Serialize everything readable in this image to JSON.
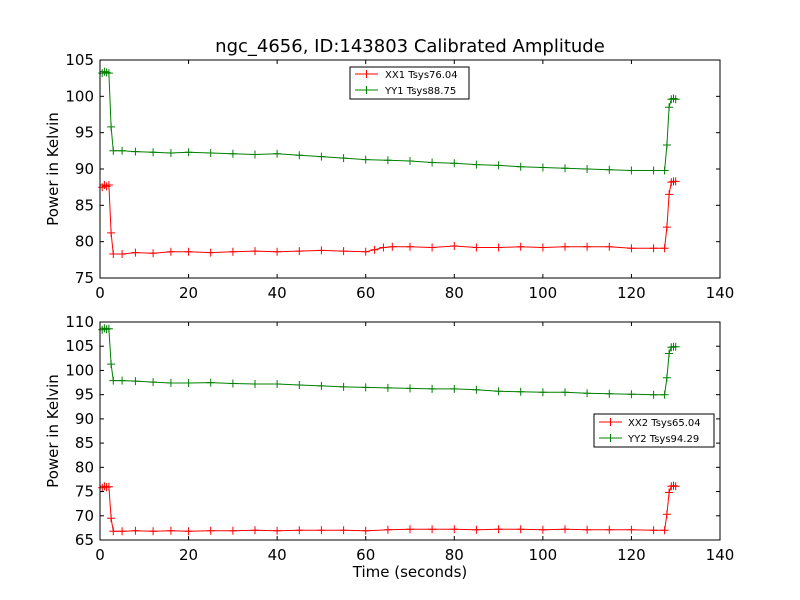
{
  "chart_data": [
    {
      "type": "line",
      "title": "ngc_4656, ID:143803 Calibrated Amplitude",
      "xlabel": "",
      "ylabel": "Power in Kelvin",
      "xlim": [
        0,
        140
      ],
      "ylim": [
        75,
        105
      ],
      "xticks": [
        0,
        20,
        40,
        60,
        80,
        100,
        120,
        140
      ],
      "yticks": [
        75,
        80,
        85,
        90,
        95,
        100,
        105
      ],
      "grid": false,
      "legend": "top-center",
      "series": [
        {
          "name": "XX1 Tsys76.04",
          "color": "#ff0000",
          "x": [
            0.5,
            1,
            1.5,
            2,
            2.5,
            3,
            5,
            8,
            12,
            16,
            20,
            25,
            30,
            35,
            40,
            45,
            50,
            55,
            60,
            62,
            64,
            66,
            70,
            75,
            80,
            85,
            90,
            95,
            100,
            105,
            110,
            115,
            120,
            125,
            127.5,
            128,
            128.5,
            129,
            129.5,
            130
          ],
          "y": [
            87.5,
            87.8,
            87.6,
            87.8,
            81.2,
            78.3,
            78.3,
            78.5,
            78.4,
            78.6,
            78.6,
            78.5,
            78.6,
            78.7,
            78.6,
            78.7,
            78.8,
            78.7,
            78.6,
            78.9,
            79.2,
            79.3,
            79.3,
            79.2,
            79.4,
            79.2,
            79.2,
            79.3,
            79.2,
            79.3,
            79.3,
            79.3,
            79.1,
            79.1,
            79.1,
            82.0,
            86.5,
            88.2,
            88.3,
            88.3
          ]
        },
        {
          "name": "YY1 Tsys88.75",
          "color": "#008000",
          "x": [
            0.5,
            1,
            1.5,
            2,
            2.5,
            3,
            5,
            8,
            12,
            16,
            20,
            25,
            30,
            35,
            40,
            45,
            50,
            55,
            60,
            65,
            70,
            75,
            80,
            85,
            90,
            95,
            100,
            105,
            110,
            115,
            120,
            125,
            127.5,
            128,
            128.5,
            129,
            129.5,
            130
          ],
          "y": [
            103.2,
            103.4,
            103.3,
            103.2,
            95.8,
            92.5,
            92.5,
            92.4,
            92.3,
            92.2,
            92.3,
            92.2,
            92.1,
            92.0,
            92.1,
            91.9,
            91.7,
            91.5,
            91.3,
            91.2,
            91.1,
            90.9,
            90.8,
            90.6,
            90.5,
            90.3,
            90.2,
            90.1,
            90.0,
            89.9,
            89.8,
            89.8,
            89.8,
            93.3,
            98.5,
            99.6,
            99.7,
            99.6
          ]
        }
      ]
    },
    {
      "type": "line",
      "title": "",
      "xlabel": "Time (seconds)",
      "ylabel": "Power in Kelvin",
      "xlim": [
        0,
        140
      ],
      "ylim": [
        65,
        110
      ],
      "xticks": [
        0,
        20,
        40,
        60,
        80,
        100,
        120,
        140
      ],
      "yticks": [
        65,
        70,
        75,
        80,
        85,
        90,
        95,
        100,
        105,
        110
      ],
      "grid": false,
      "legend": "right",
      "series": [
        {
          "name": "XX2 Tsys65.04",
          "color": "#ff0000",
          "x": [
            0.5,
            1,
            1.5,
            2,
            2.5,
            3,
            5,
            8,
            12,
            16,
            20,
            25,
            30,
            35,
            40,
            45,
            50,
            55,
            60,
            65,
            70,
            75,
            80,
            85,
            90,
            95,
            100,
            105,
            110,
            115,
            120,
            125,
            127.5,
            128,
            128.5,
            129,
            129.5,
            130
          ],
          "y": [
            75.8,
            76.1,
            75.9,
            76.0,
            69.5,
            66.8,
            66.8,
            66.9,
            66.8,
            66.9,
            66.8,
            66.9,
            66.9,
            67.0,
            66.9,
            67.0,
            67.0,
            67.0,
            66.9,
            67.1,
            67.2,
            67.2,
            67.2,
            67.1,
            67.2,
            67.2,
            67.1,
            67.2,
            67.1,
            67.1,
            67.1,
            67.0,
            67.0,
            70.3,
            74.8,
            76.1,
            76.2,
            76.1
          ]
        },
        {
          "name": "YY2 Tsys94.29",
          "color": "#008000",
          "x": [
            0.5,
            1,
            1.5,
            2,
            2.5,
            3,
            5,
            8,
            12,
            16,
            20,
            25,
            30,
            35,
            40,
            45,
            50,
            55,
            60,
            65,
            70,
            75,
            80,
            85,
            90,
            95,
            100,
            105,
            110,
            115,
            120,
            125,
            127.5,
            128,
            128.5,
            129,
            129.5,
            130
          ],
          "y": [
            108.4,
            108.7,
            108.5,
            108.6,
            101.3,
            97.9,
            97.9,
            97.8,
            97.6,
            97.4,
            97.4,
            97.5,
            97.3,
            97.2,
            97.2,
            97.0,
            96.8,
            96.6,
            96.5,
            96.4,
            96.3,
            96.2,
            96.2,
            96.0,
            95.7,
            95.6,
            95.5,
            95.5,
            95.3,
            95.2,
            95.1,
            95.0,
            95.0,
            98.5,
            103.5,
            104.8,
            104.9,
            104.9
          ]
        }
      ]
    }
  ]
}
